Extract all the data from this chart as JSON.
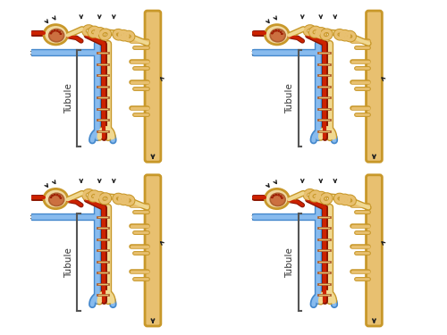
{
  "background_color": "#ffffff",
  "tubule_label": "Tubule",
  "colors": {
    "tan": "#E8C070",
    "tan_dark": "#C8982A",
    "tan_light": "#F0D890",
    "red": "#CC2200",
    "red_dark": "#8B1500",
    "blue": "#4488CC",
    "blue_light": "#88BBEE",
    "arrow": "#222222",
    "bracket": "#555555",
    "glom_outer": "#F0D8A0",
    "glom_inner": "#CC7040",
    "glom_border": "#B06030"
  },
  "figsize": [
    5.0,
    3.75
  ],
  "dpi": 100
}
